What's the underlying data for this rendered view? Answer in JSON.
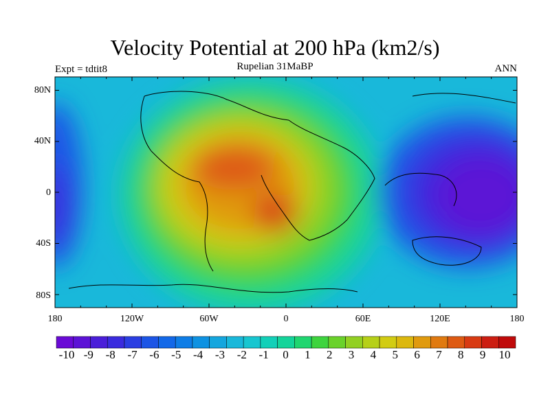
{
  "title": "Velocity Potential at 200 hPa (km2/s)",
  "subtitle": "Rupelian  31MaBP",
  "left_label": "Expt = tdtit8",
  "right_label": "ANN",
  "lat_labels": [
    "80N",
    "40N",
    "0",
    "40S",
    "80S"
  ],
  "lon_labels": [
    "180",
    "120W",
    "60W",
    "0",
    "60E",
    "120E",
    "180"
  ],
  "colorbar_labels": [
    "-10",
    "-9",
    "-8",
    "-7",
    "-6",
    "-5",
    "-4",
    "-3",
    "-2",
    "-1",
    "0",
    "1",
    "2",
    "3",
    "4",
    "5",
    "6",
    "7",
    "8",
    "9",
    "10"
  ],
  "colorbar_colors": [
    "#6a0ad6",
    "#5c12d6",
    "#4a1ed9",
    "#3a2bde",
    "#2a3ee2",
    "#1c55e6",
    "#1268e8",
    "#0e7de6",
    "#0e92e2",
    "#14a6de",
    "#19b8da",
    "#17c6d0",
    "#12d0b8",
    "#14d49a",
    "#20d670",
    "#3ed43e",
    "#6ad22a",
    "#92d022",
    "#b6d018",
    "#d2cc12",
    "#dcb80e",
    "#e09a0e",
    "#e07a10",
    "#de5a12",
    "#d83a12",
    "#cc1e12",
    "#c00a0a"
  ],
  "colors": {
    "ocean_mid": "#19b8da",
    "positive_max": "#d83a12",
    "negative_min": "#5c12d6"
  }
}
